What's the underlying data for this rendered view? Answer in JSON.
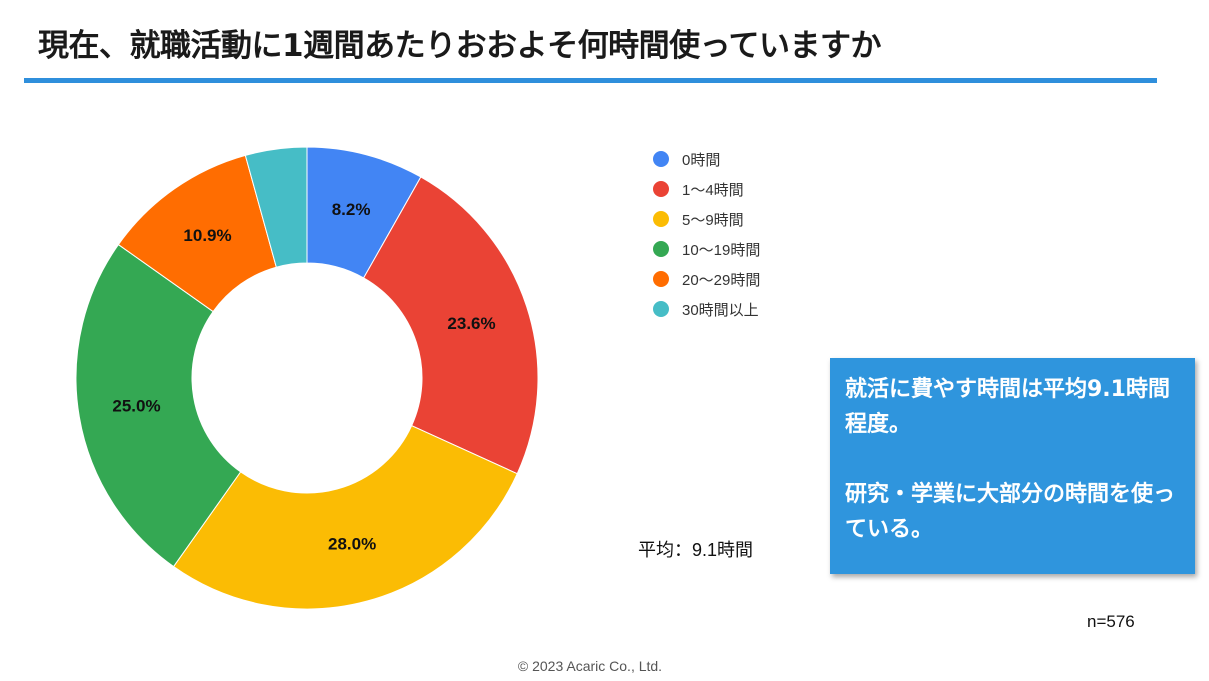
{
  "title": "現在、就職活動に1週間あたりおおよそ何時間使っていますか",
  "chart_data": {
    "type": "pie",
    "style": "donut",
    "categories": [
      "0時間",
      "1〜4時間",
      "5〜9時間",
      "10〜19時間",
      "20〜29時間",
      "30時間以上"
    ],
    "values": [
      8.2,
      23.6,
      28.0,
      25.0,
      10.9,
      4.3
    ],
    "value_labels": [
      "8.2%",
      "23.6%",
      "28.0%",
      "25.0%",
      "10.9%",
      ""
    ],
    "colors": [
      "#4285f4",
      "#ea4335",
      "#fbbc04",
      "#34a853",
      "#ff6d01",
      "#46bdc6"
    ],
    "legend_position": "right"
  },
  "average_label": "平均：9.1時間",
  "callout": {
    "line1": "就活に費やす時間は平均9.1時間程度。",
    "line2": "研究・学業に大部分の時間を使っている。"
  },
  "sample_size": "n=576",
  "copyright": "© 2023 Acaric Co., Ltd."
}
